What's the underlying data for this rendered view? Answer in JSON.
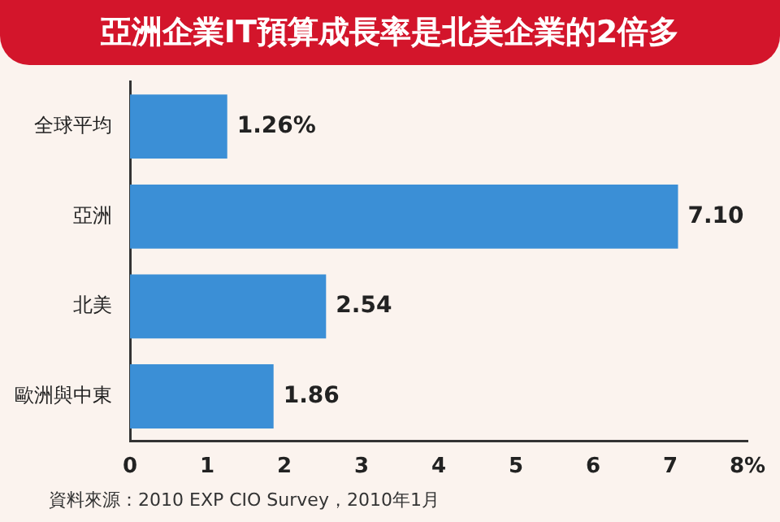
{
  "chart_data": {
    "type": "bar",
    "orientation": "horizontal",
    "title": "亞洲企業IT預算成長率是北美企業的2倍多",
    "categories": [
      "全球平均",
      "亞洲",
      "北美",
      "歐洲與中東"
    ],
    "values": [
      1.26,
      7.1,
      2.54,
      1.86
    ],
    "value_labels": [
      "1.26%",
      "7.10",
      "2.54",
      "1.86"
    ],
    "color": "#3b8fd6",
    "xlim": [
      0,
      8
    ],
    "xticks": [
      0,
      1,
      2,
      3,
      4,
      5,
      6,
      7,
      {
        "value": 8,
        "label": "8%"
      }
    ],
    "grid": false,
    "annotations": [
      "資料來源：2010 EXP CIO Survey，2010年1月"
    ]
  }
}
